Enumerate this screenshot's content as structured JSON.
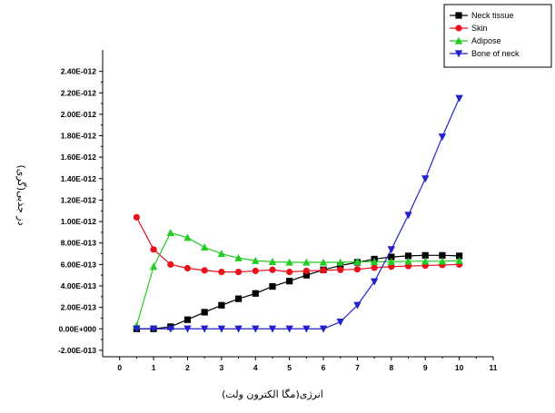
{
  "chart_data": {
    "type": "line",
    "xlabel": "انرژی(مگا الکترون ولت)",
    "ylabel": "دز جذبی(گری)",
    "xlim": [
      -0.5,
      11
    ],
    "ylim": [
      -2.6e-13,
      2.6e-12
    ],
    "x_ticks": [
      0,
      1,
      2,
      3,
      4,
      5,
      6,
      7,
      8,
      9,
      10,
      11
    ],
    "y_ticks": [
      {
        "value": -2e-13,
        "label": "-2.00E-013"
      },
      {
        "value": 0,
        "label": "0.00E+000"
      },
      {
        "value": 2e-13,
        "label": "2.00E-013"
      },
      {
        "value": 4e-13,
        "label": "4.00E-013"
      },
      {
        "value": 6e-13,
        "label": "6.00E-013"
      },
      {
        "value": 8e-13,
        "label": "8.00E-013"
      },
      {
        "value": 1e-12,
        "label": "1.00E-012"
      },
      {
        "value": 1.2e-12,
        "label": "1.20E-012"
      },
      {
        "value": 1.4e-12,
        "label": "1.40E-012"
      },
      {
        "value": 1.6e-12,
        "label": "1.60E-012"
      },
      {
        "value": 1.8e-12,
        "label": "1.80E-012"
      },
      {
        "value": 2e-12,
        "label": "2.00E-012"
      },
      {
        "value": 2.2e-12,
        "label": "2.20E-012"
      },
      {
        "value": 2.4e-12,
        "label": "2.40E-012"
      }
    ],
    "grid": false,
    "legend_position": "top-right",
    "x": [
      0.5,
      1,
      1.5,
      2,
      2.5,
      3,
      3.5,
      4,
      4.5,
      5,
      5.5,
      6,
      6.5,
      7,
      7.5,
      8,
      8.5,
      9,
      9.5,
      10
    ],
    "series": [
      {
        "name": "Neck tissue",
        "color": "#000000",
        "marker": "square",
        "values": [
          0,
          0,
          2e-14,
          8.5e-14,
          1.55e-13,
          2.2e-13,
          2.8e-13,
          3.3e-13,
          3.95e-13,
          4.45e-13,
          5e-13,
          5.5e-13,
          5.9e-13,
          6.2e-13,
          6.5e-13,
          6.7e-13,
          6.8e-13,
          6.85e-13,
          6.85e-13,
          6.8e-13
        ]
      },
      {
        "name": "Skin",
        "color": "#e8111c",
        "marker": "circle",
        "values": [
          1.04e-12,
          7.4e-13,
          6e-13,
          5.65e-13,
          5.45e-13,
          5.3e-13,
          5.3e-13,
          5.4e-13,
          5.5e-13,
          5.3e-13,
          5.4e-13,
          5.45e-13,
          5.5e-13,
          5.55e-13,
          5.7e-13,
          5.8e-13,
          5.85e-13,
          5.9e-13,
          5.95e-13,
          6e-13
        ]
      },
      {
        "name": "Adipose",
        "color": "#22cc22",
        "marker": "triangle-up",
        "values": [
          3e-14,
          5.8e-13,
          8.95e-13,
          8.5e-13,
          7.6e-13,
          7e-13,
          6.6e-13,
          6.35e-13,
          6.25e-13,
          6.2e-13,
          6.2e-13,
          6.2e-13,
          6.2e-13,
          6.25e-13,
          6.25e-13,
          6.25e-13,
          6.3e-13,
          6.3e-13,
          6.3e-13,
          6.35e-13
        ]
      },
      {
        "name": "Bone of neck",
        "color": "#2222cc",
        "marker": "triangle-down",
        "values": [
          0,
          0,
          0,
          0,
          0,
          0,
          0,
          0,
          0,
          0,
          0,
          0,
          6.5e-14,
          2.2e-13,
          4.4e-13,
          7.4e-13,
          1.06e-12,
          1.4e-12,
          1.79e-12,
          2.15e-12
        ]
      }
    ]
  }
}
